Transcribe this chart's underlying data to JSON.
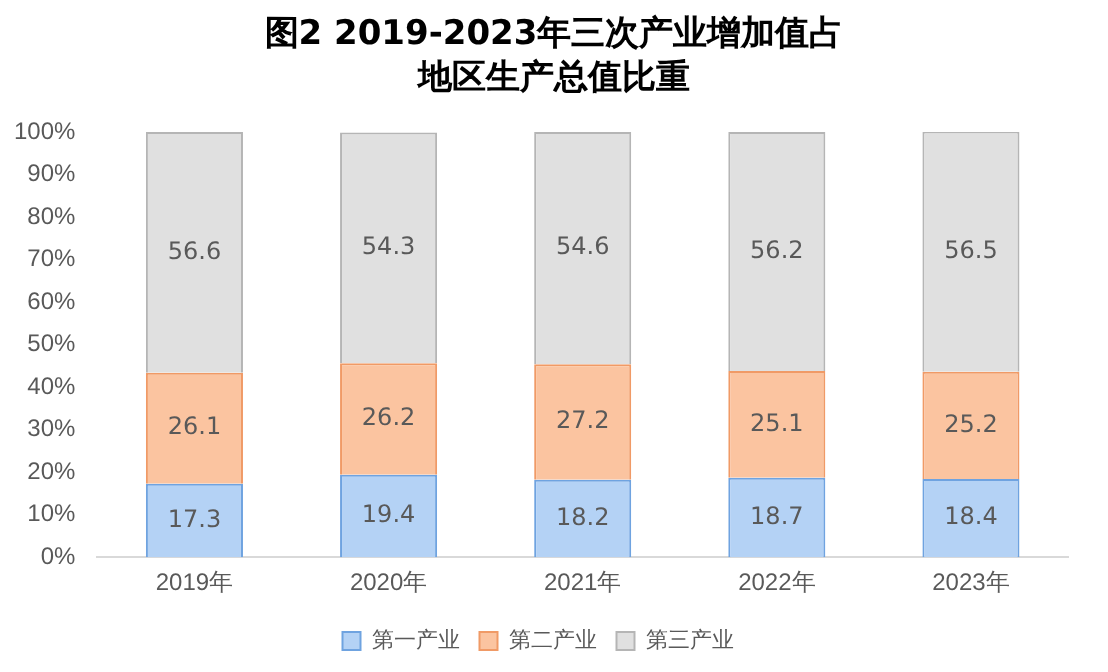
{
  "chart_data": {
    "type": "bar",
    "title": "图2 2019-2023年三次产业增加值占地区生产总值比重",
    "categories": [
      "2019年",
      "2020年",
      "2021年",
      "2022年",
      "2023年"
    ],
    "stacked": true,
    "data_labels": true,
    "legend": "bottom",
    "grid": false,
    "ylim": [
      0,
      100
    ],
    "yticks": [
      {
        "value": 0,
        "label": "0%"
      },
      {
        "value": 10,
        "label": "10%"
      },
      {
        "value": 20,
        "label": "20%"
      },
      {
        "value": 30,
        "label": "30%"
      },
      {
        "value": 40,
        "label": "40%"
      },
      {
        "value": 50,
        "label": "50%"
      },
      {
        "value": 60,
        "label": "60%"
      },
      {
        "value": 70,
        "label": "70%"
      },
      {
        "value": 80,
        "label": "80%"
      },
      {
        "value": 90,
        "label": "90%"
      },
      {
        "value": 100,
        "label": "100%"
      }
    ],
    "series": [
      {
        "name": "第一产业",
        "color": "#b4d2f5",
        "values": [
          17.3,
          19.4,
          18.2,
          18.7,
          18.4
        ]
      },
      {
        "name": "第二产业",
        "color": "#fbc4a0",
        "values": [
          26.1,
          26.2,
          27.2,
          25.1,
          25.2
        ]
      },
      {
        "name": "第三产业",
        "color": "#e0e0e0",
        "values": [
          56.6,
          54.3,
          54.6,
          56.2,
          56.5
        ]
      }
    ]
  }
}
